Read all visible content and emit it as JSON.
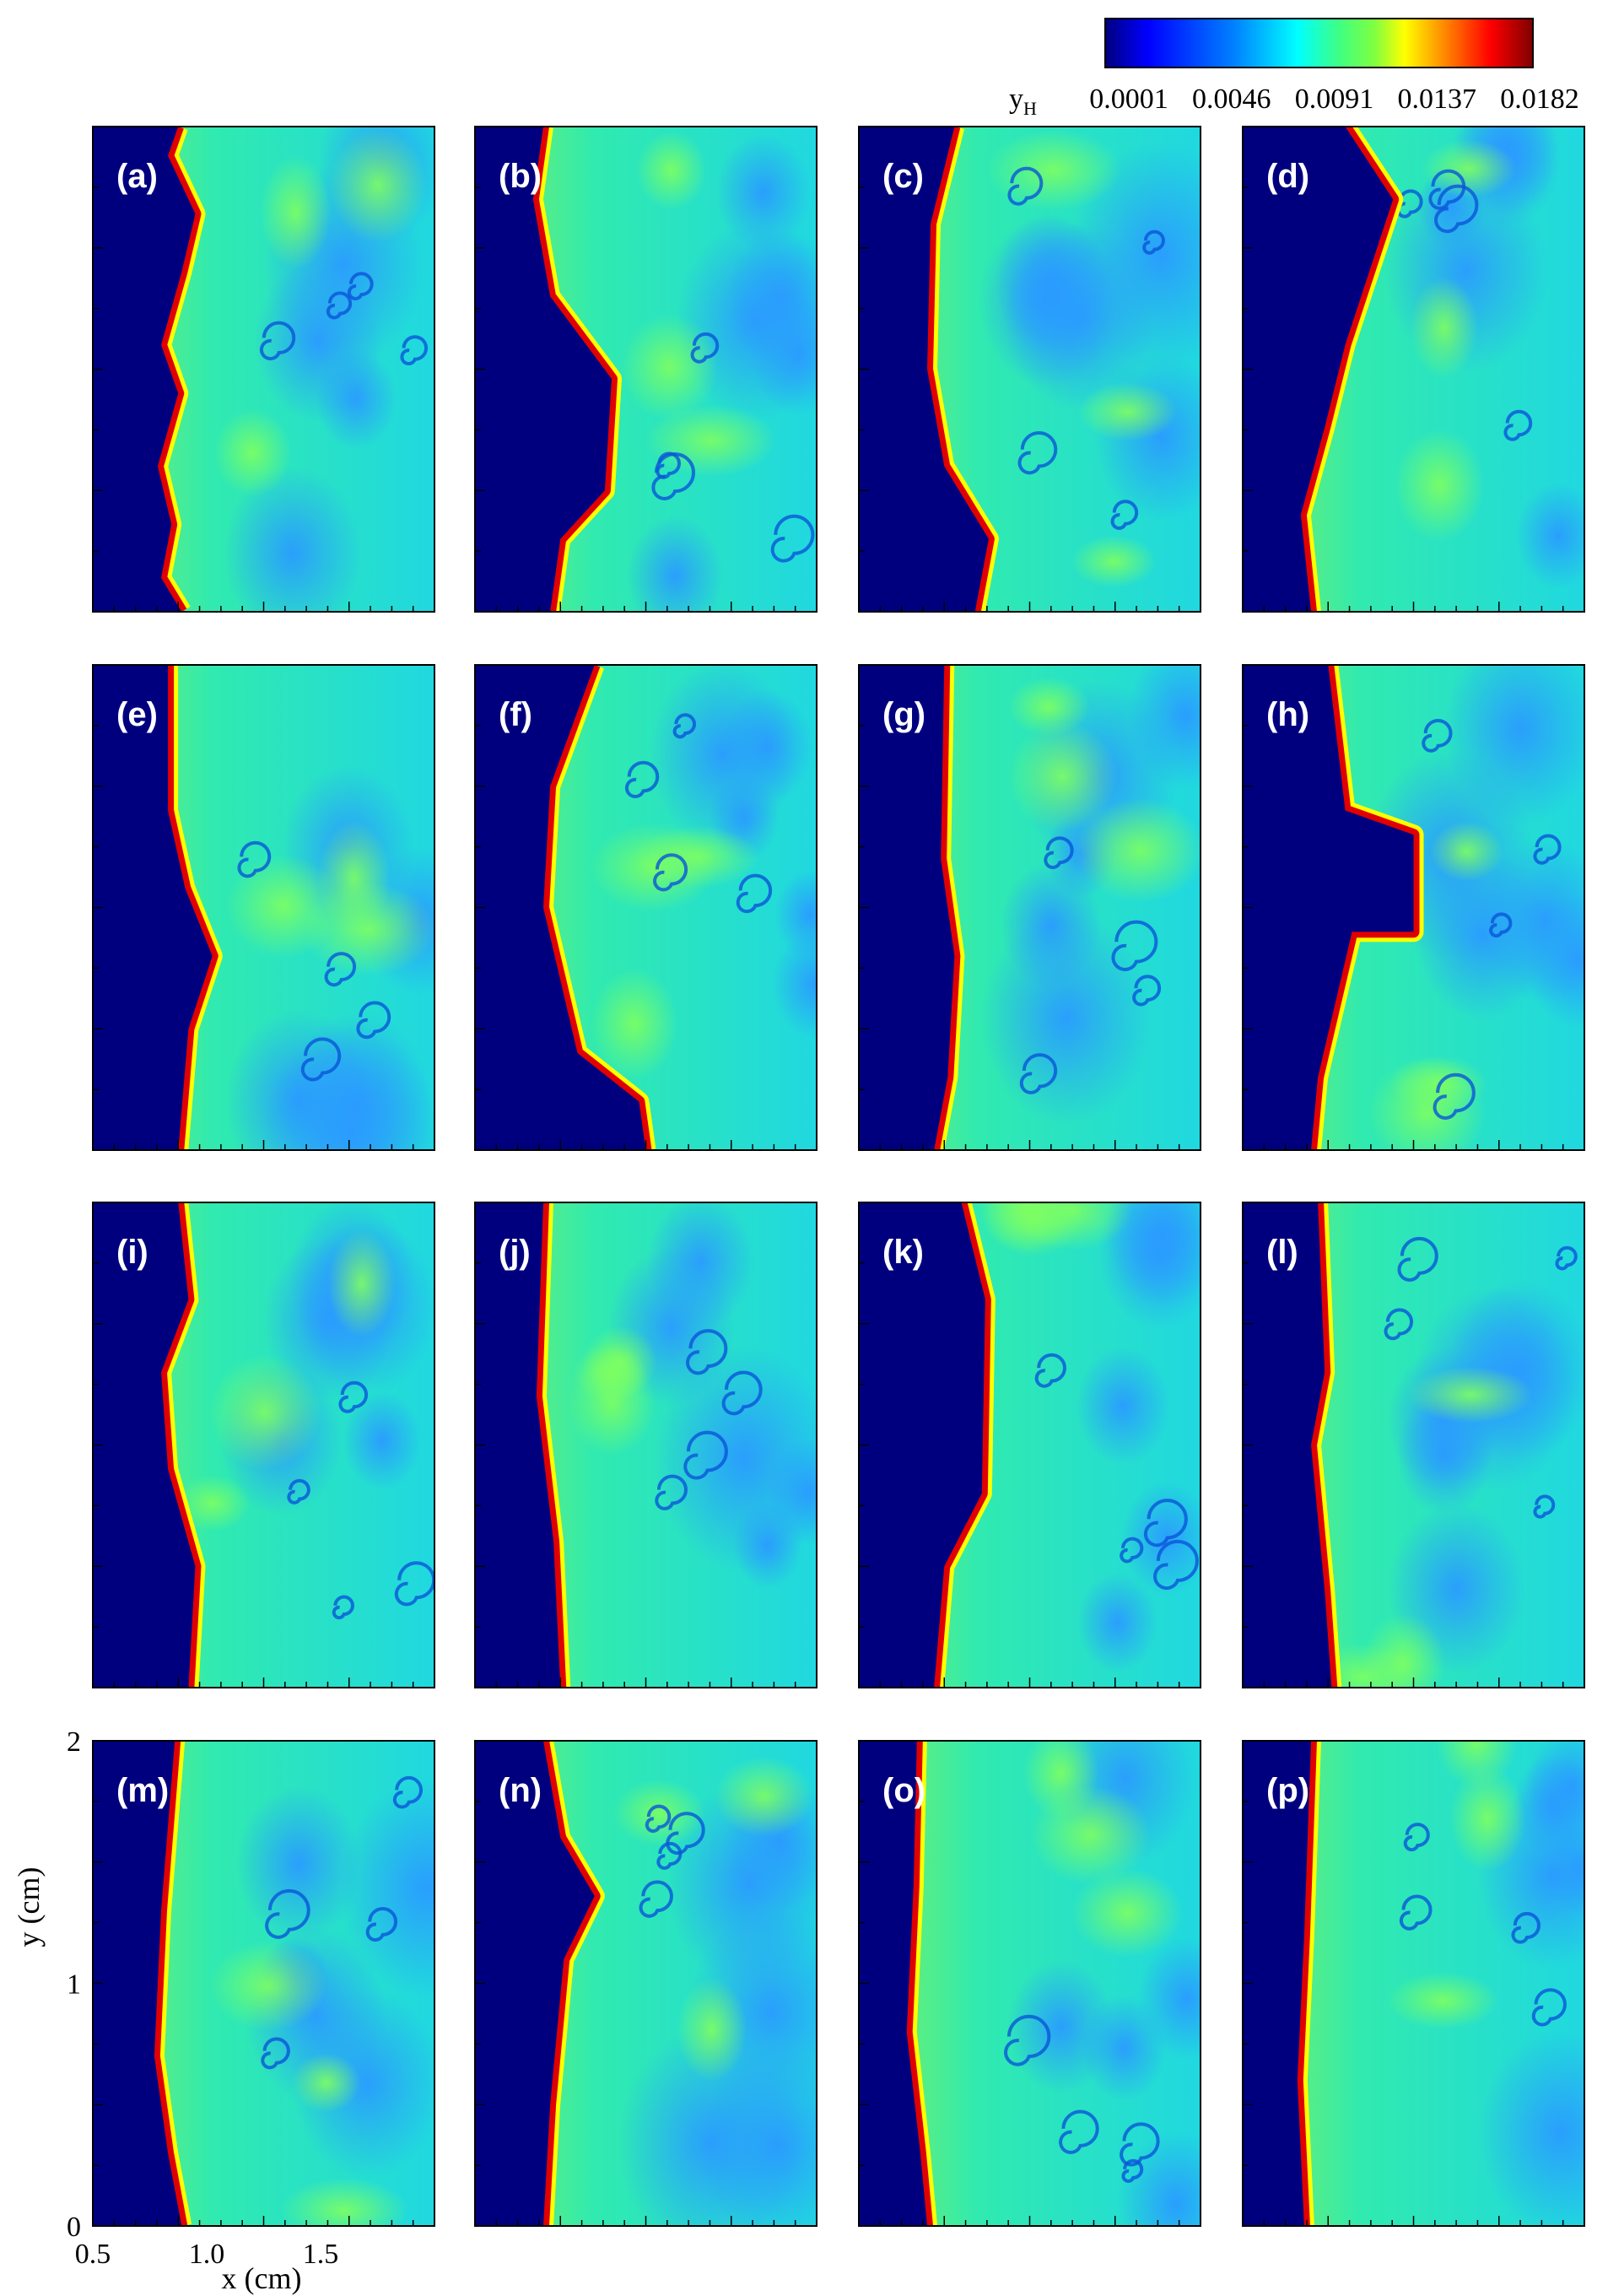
{
  "colorbar": {
    "var_main": "y",
    "var_sub": "H",
    "min": 0.0001,
    "max": 0.0182,
    "tick_labels": [
      "0.0001",
      "0.0046",
      "0.0091",
      "0.0137",
      "0.0182"
    ],
    "colors": [
      "#00007f",
      "#0000ff",
      "#0080ff",
      "#00ffff",
      "#40ff80",
      "#80ff40",
      "#ffff00",
      "#ff8000",
      "#ff0000",
      "#7f0000"
    ]
  },
  "chart_data": {
    "type": "heatmap",
    "description_note": "",
    "panels": [
      {
        "label": "(a)"
      },
      {
        "label": "(b)"
      },
      {
        "label": "(c)"
      },
      {
        "label": "(d)"
      },
      {
        "label": "(e)"
      },
      {
        "label": "(f)"
      },
      {
        "label": "(g)"
      },
      {
        "label": "(h)"
      },
      {
        "label": "(i)"
      },
      {
        "label": "(j)"
      },
      {
        "label": "(k)"
      },
      {
        "label": "(l)"
      },
      {
        "label": "(m)"
      },
      {
        "label": "(n)"
      },
      {
        "label": "(o)"
      },
      {
        "label": "(p)"
      }
    ],
    "xlabel": "x (cm)",
    "ylabel": "y (cm)",
    "xlim": [
      0.5,
      2.0
    ],
    "ylim": [
      0,
      2
    ],
    "x_ticks": [
      "0.5",
      "1.0",
      "1.5"
    ],
    "y_ticks": [
      "0",
      "1",
      "2"
    ],
    "colors": {
      "unburned": "#00007f",
      "front": "#e00000",
      "front_edge": "#ffff00",
      "products": "#2ae8c0",
      "products_light": "#00ffff",
      "eddies": "#1a8cff",
      "warm": "#7fff7f"
    }
  }
}
